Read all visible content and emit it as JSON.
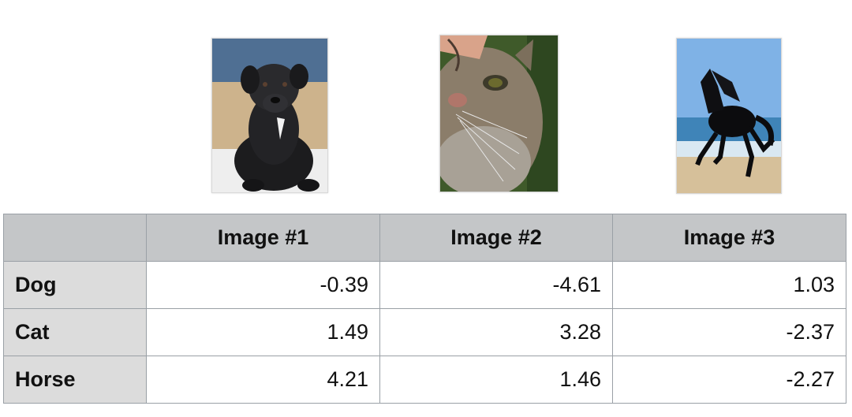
{
  "images": [
    {
      "subject": "dog",
      "icon": "puppy-photo"
    },
    {
      "subject": "cat",
      "icon": "cat-photo"
    },
    {
      "subject": "horse",
      "icon": "horse-photo"
    }
  ],
  "table": {
    "columns": [
      "",
      "Image #1",
      "Image #2",
      "Image #3"
    ],
    "rows": [
      {
        "label": "Dog",
        "values": [
          "-0.39",
          "-4.61",
          "1.03"
        ]
      },
      {
        "label": "Cat",
        "values": [
          "1.49",
          "3.28",
          "-2.37"
        ]
      },
      {
        "label": "Horse",
        "values": [
          "4.21",
          "1.46",
          "-2.27"
        ]
      }
    ]
  },
  "colors": {
    "header_bg": "#c4c6c8",
    "rowhead_bg": "#dcdcdc",
    "border": "#9aa0a6"
  }
}
